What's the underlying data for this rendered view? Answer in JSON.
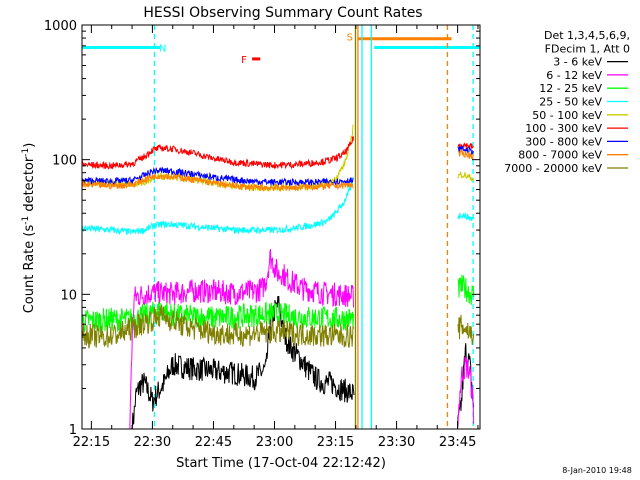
{
  "chart_data": {
    "type": "line",
    "title": "HESSI Observing Summary Count Rates",
    "xlabel": "Start Time (17-Oct-04 22:12:42)",
    "ylabel_base": "Count Rate (s",
    "ylabel_sup1": "-1",
    "ylabel_mid": " detector",
    "ylabel_sup2": "-1",
    "ylabel_end": ")",
    "yscale": "log",
    "ylim": [
      1,
      1000
    ],
    "xlim_minutes": [
      12.7,
      110.5
    ],
    "x_tick_values": [
      15,
      30,
      45,
      60,
      75,
      90,
      105
    ],
    "x_tick_labels": [
      "22:15",
      "22:30",
      "22:45",
      "23:00",
      "23:15",
      "23:30",
      "23:45"
    ],
    "y_tick_values": [
      1,
      10,
      100,
      1000
    ],
    "y_tick_labels": [
      "1",
      "10",
      "100",
      "1000"
    ],
    "footer_date": "8-Jan-2010 19:48",
    "legend_header": [
      "Det 1,3,4,5,6,9,",
      "FDecim 1, Att 0"
    ],
    "series": [
      {
        "name": "3 - 6 keV",
        "color": "#000000",
        "x": [
          12.7,
          25,
          25.5,
          26,
          27,
          28,
          30,
          33,
          35,
          40,
          45,
          50,
          55,
          58,
          59,
          60,
          61,
          62,
          63,
          64,
          66,
          68,
          70,
          72,
          74,
          76,
          78,
          79.5,
          82,
          105,
          106,
          107,
          108,
          109
        ],
        "y": [
          1,
          1,
          1.3,
          1.8,
          2.1,
          2.2,
          1.6,
          2.2,
          3.0,
          2.8,
          2.7,
          2.6,
          2.4,
          2.8,
          6.2,
          7.5,
          8.5,
          5.5,
          4.6,
          4.0,
          3.4,
          2.8,
          2.4,
          2.2,
          2.2,
          2.0,
          1.9,
          1.8,
          1,
          1,
          1.6,
          3.8,
          3.0,
          1.2
        ]
      },
      {
        "name": "6 - 12 keV",
        "color": "#ff00ff",
        "x": [
          12.7,
          24.5,
          25,
          25.5,
          28,
          30,
          32,
          35,
          40,
          45,
          50,
          55,
          57,
          58,
          59,
          60,
          61,
          62,
          63,
          65,
          67,
          70,
          72,
          75,
          78,
          79.5,
          105,
          106,
          107,
          108,
          109
        ],
        "y": [
          1,
          1,
          4,
          9.5,
          10,
          10.3,
          10.2,
          10.1,
          10.6,
          10.5,
          10.2,
          10.5,
          11,
          13,
          19,
          16,
          14,
          14.5,
          13,
          12,
          11,
          10.6,
          10.2,
          10,
          9.8,
          9.6,
          1,
          2.5,
          3,
          2.6,
          1.2
        ]
      },
      {
        "name": "12 - 25 keV",
        "color": "#00ff00",
        "x": [
          12.7,
          20,
          25,
          27,
          30,
          32,
          35,
          40,
          45,
          50,
          55,
          60,
          65,
          70,
          75,
          79.5,
          105,
          106,
          107,
          108,
          109
        ],
        "y": [
          6.3,
          6.5,
          6.5,
          6.8,
          7.2,
          7.6,
          7.0,
          6.8,
          6.7,
          6.8,
          7.0,
          7.2,
          6.8,
          6.7,
          6.6,
          6.6,
          10.5,
          11.5,
          11,
          10.2,
          10
        ]
      },
      {
        "name": "25 - 50 keV",
        "color": "#00ffff",
        "x": [
          12.7,
          20,
          25,
          28,
          30,
          32,
          35,
          40,
          45,
          50,
          55,
          60,
          65,
          70,
          73,
          75,
          77,
          78,
          79,
          79.5,
          105,
          106,
          107,
          108,
          109
        ],
        "y": [
          31,
          30,
          29,
          30,
          32,
          33,
          33,
          32,
          31,
          30,
          30,
          30,
          31,
          33,
          35,
          40,
          48,
          55,
          65,
          75,
          38,
          39,
          38,
          37,
          36
        ]
      },
      {
        "name": "50 - 100 keV",
        "color": "#cccc00",
        "x": [
          12.7,
          20,
          25,
          28,
          30,
          32,
          35,
          40,
          45,
          50,
          55,
          60,
          65,
          70,
          73,
          75,
          77,
          78,
          79,
          79.5,
          105,
          106,
          107,
          108,
          109
        ],
        "y": [
          68,
          67,
          66,
          67,
          72,
          75,
          74,
          71,
          67,
          64,
          62,
          62,
          62,
          63,
          66,
          72,
          90,
          110,
          150,
          190,
          75,
          78,
          76,
          74,
          72
        ]
      },
      {
        "name": "100 - 300 keV",
        "color": "#ff0000",
        "x": [
          12.7,
          20,
          25,
          28,
          30,
          32,
          35,
          40,
          45,
          50,
          55,
          60,
          65,
          70,
          73,
          75,
          77,
          78,
          79,
          79.5,
          105,
          106,
          107,
          108,
          109
        ],
        "y": [
          92,
          90,
          93,
          105,
          118,
          122,
          120,
          112,
          102,
          96,
          93,
          91,
          92,
          95,
          98,
          102,
          110,
          120,
          135,
          150,
          125,
          130,
          128,
          126,
          124
        ]
      },
      {
        "name": "300 - 800 keV",
        "color": "#0000ff",
        "x": [
          12.7,
          20,
          25,
          28,
          30,
          32,
          35,
          40,
          45,
          50,
          55,
          60,
          65,
          70,
          75,
          79.5,
          105,
          106,
          107,
          108,
          109
        ],
        "y": [
          70,
          69,
          70,
          76,
          82,
          83,
          82,
          78,
          74,
          71,
          69,
          68,
          68,
          68,
          69,
          70,
          118,
          120,
          118,
          116,
          115
        ]
      },
      {
        "name": "800 - 7000 keV",
        "color": "#ff8000",
        "x": [
          12.7,
          20,
          25,
          28,
          30,
          32,
          35,
          40,
          45,
          50,
          55,
          60,
          65,
          70,
          75,
          79.5,
          105,
          106,
          107,
          108,
          109
        ],
        "y": [
          65,
          64,
          65,
          71,
          75,
          76,
          75,
          71,
          67,
          64,
          62,
          62,
          62,
          63,
          64,
          65,
          110,
          112,
          110,
          108,
          106
        ]
      },
      {
        "name": "7000 - 20000 keV",
        "color": "#808000",
        "x": [
          12.7,
          18,
          22,
          25,
          27,
          29,
          30,
          32,
          35,
          38,
          40,
          45,
          50,
          55,
          60,
          65,
          70,
          75,
          79.5,
          105,
          106,
          107,
          108,
          109
        ],
        "y": [
          5,
          4.8,
          5.1,
          5.6,
          6.0,
          6.3,
          6.5,
          7.0,
          6.4,
          5.8,
          5.6,
          5.2,
          5.0,
          5.1,
          5.3,
          5.1,
          5.0,
          4.9,
          4.9,
          5.5,
          5.8,
          5.6,
          5.2,
          5.0
        ]
      }
    ],
    "flag_bars": [
      {
        "label": "",
        "color": "#00ffff",
        "x_start": 12.7,
        "x_end": 32,
        "y": 680
      },
      {
        "label": "",
        "color": "#00ffff",
        "x_start": 84.5,
        "x_end": 110.5,
        "y": 680
      },
      {
        "label": "",
        "color": "#ff8000",
        "x_start": 80.5,
        "x_end": 103.5,
        "y": 790
      },
      {
        "label": "",
        "color": "#ff0000",
        "x_start": 54.5,
        "x_end": 56.5,
        "y": 560
      }
    ],
    "flag_labels": [
      {
        "text": "N",
        "color": "#00ffff",
        "x": 32.5,
        "y": 680
      },
      {
        "text": "F",
        "color": "#ff0000",
        "x": 52.5,
        "y": 560
      },
      {
        "text": "S",
        "color": "#ff8000",
        "x": 78.5,
        "y": 820
      }
    ],
    "vlines": [
      {
        "x": 30.5,
        "color": "#00ffff",
        "dashed": true
      },
      {
        "x": 81.5,
        "color": "#00ffff",
        "dashed": false
      },
      {
        "x": 83.8,
        "color": "#00ffff",
        "dashed": false
      },
      {
        "x": 108.8,
        "color": "#00ffff",
        "dashed": true
      },
      {
        "x": 80.5,
        "color": "#ff8000",
        "dashed": false
      },
      {
        "x": 79.9,
        "color": "#808000",
        "dashed": false
      },
      {
        "x": 102.5,
        "color": "#ff8000",
        "dashed": true
      }
    ]
  }
}
